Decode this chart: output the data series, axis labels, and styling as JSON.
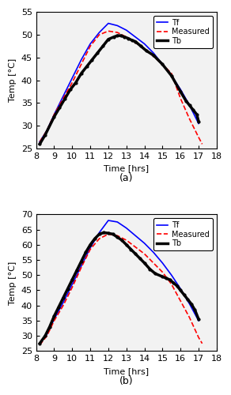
{
  "subplot_a": {
    "ylim": [
      25,
      55
    ],
    "yticks": [
      25,
      30,
      35,
      40,
      45,
      50,
      55
    ],
    "xlim": [
      8,
      18
    ],
    "xticks": [
      8,
      9,
      10,
      11,
      12,
      13,
      14,
      15,
      16,
      17,
      18
    ],
    "ylabel": "Temp [°C]",
    "xlabel": "Time [hrs]",
    "label": "(a)",
    "Tf_x": [
      8.2,
      8.6,
      9.0,
      9.5,
      10.0,
      10.5,
      11.0,
      11.5,
      12.0,
      12.5,
      13.0,
      13.5,
      14.0,
      14.5,
      15.0,
      15.5,
      16.0,
      16.5,
      17.0
    ],
    "Tf_y": [
      26.5,
      29.0,
      32.5,
      36.5,
      40.5,
      44.5,
      48.0,
      50.5,
      52.5,
      52.0,
      51.0,
      49.5,
      48.0,
      46.0,
      43.5,
      41.0,
      38.0,
      34.5,
      30.5
    ],
    "Measured_x": [
      8.2,
      8.6,
      9.0,
      9.5,
      10.0,
      10.5,
      11.0,
      11.5,
      12.0,
      12.5,
      13.0,
      14.0,
      15.0,
      15.5,
      16.0,
      16.5,
      17.0,
      17.2
    ],
    "Measured_y": [
      26.5,
      29.0,
      32.5,
      36.0,
      39.5,
      43.5,
      47.5,
      50.0,
      50.8,
      50.5,
      49.5,
      47.0,
      43.5,
      41.5,
      36.0,
      31.5,
      27.5,
      26.0
    ],
    "Tb_x": [
      8.2,
      8.5,
      9.0,
      9.3,
      9.6,
      9.9,
      10.2,
      10.5,
      10.8,
      11.1,
      11.4,
      11.7,
      12.0,
      12.3,
      12.5,
      12.7,
      12.9,
      13.1,
      13.3,
      13.5,
      13.8,
      14.1,
      14.5,
      15.0,
      15.5,
      16.0,
      16.3,
      16.5,
      16.7,
      16.9,
      17.0
    ],
    "Tb_y": [
      26.0,
      28.0,
      32.0,
      34.0,
      36.0,
      38.0,
      39.5,
      41.5,
      43.0,
      44.5,
      46.0,
      47.5,
      49.0,
      49.5,
      49.8,
      49.8,
      49.5,
      49.2,
      48.8,
      48.5,
      47.5,
      46.5,
      45.5,
      43.5,
      41.0,
      37.5,
      35.5,
      34.5,
      33.5,
      32.5,
      31.0
    ]
  },
  "subplot_b": {
    "ylim": [
      25,
      70
    ],
    "yticks": [
      25,
      30,
      35,
      40,
      45,
      50,
      55,
      60,
      65,
      70
    ],
    "xlim": [
      8,
      18
    ],
    "xticks": [
      8,
      9,
      10,
      11,
      12,
      13,
      14,
      15,
      16,
      17,
      18
    ],
    "ylabel": "Temp [°C]",
    "xlabel": "Time [hrs]",
    "label": "(b)",
    "Tf_x": [
      8.2,
      8.6,
      9.0,
      9.5,
      10.0,
      10.5,
      11.0,
      11.5,
      12.0,
      12.5,
      13.0,
      13.5,
      14.0,
      14.5,
      15.0,
      15.5,
      16.0,
      16.5,
      17.0
    ],
    "Tf_y": [
      27.5,
      30.5,
      35.5,
      41.0,
      47.0,
      53.0,
      59.0,
      64.0,
      68.0,
      67.5,
      65.5,
      63.0,
      60.5,
      57.5,
      54.0,
      50.0,
      45.5,
      40.5,
      35.0
    ],
    "Measured_x": [
      8.2,
      8.6,
      9.0,
      9.5,
      10.0,
      10.5,
      11.0,
      11.5,
      12.0,
      12.5,
      13.0,
      14.0,
      15.0,
      15.5,
      16.0,
      16.5,
      17.0,
      17.2
    ],
    "Measured_y": [
      27.0,
      30.0,
      35.0,
      40.0,
      46.0,
      52.5,
      58.5,
      62.0,
      63.5,
      63.0,
      61.5,
      57.0,
      51.0,
      47.0,
      41.5,
      36.0,
      29.5,
      27.5
    ],
    "Tb_x": [
      8.2,
      8.5,
      8.75,
      9.0,
      9.25,
      9.5,
      9.75,
      10.0,
      10.25,
      10.5,
      10.75,
      11.0,
      11.25,
      11.5,
      11.75,
      12.0,
      12.25,
      12.5,
      12.75,
      13.0,
      13.25,
      13.5,
      13.75,
      14.0,
      14.3,
      14.6,
      15.0,
      15.2,
      15.4,
      15.6,
      15.8,
      16.0,
      16.2,
      16.4,
      16.6,
      16.8,
      17.0
    ],
    "Tb_y": [
      27.5,
      30.0,
      33.0,
      36.5,
      39.5,
      42.5,
      45.5,
      48.5,
      51.5,
      54.5,
      57.5,
      60.0,
      62.0,
      63.5,
      64.0,
      63.8,
      63.5,
      62.5,
      61.5,
      60.0,
      58.5,
      57.0,
      55.5,
      54.0,
      52.0,
      50.5,
      49.5,
      49.0,
      48.5,
      47.5,
      46.5,
      45.0,
      43.5,
      42.0,
      40.5,
      38.5,
      35.5
    ]
  },
  "legend": [
    "Tf",
    "Measured",
    "Tb"
  ],
  "Tf_color": "#0000ff",
  "Measured_color": "#ff0000",
  "Tb_color": "#000000",
  "bg_color": "#f2f2f2",
  "fontsize": 8
}
